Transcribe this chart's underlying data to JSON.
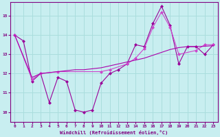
{
  "background_color": "#c8eef0",
  "grid_color": "#aadddd",
  "line_color_1": "#990099",
  "line_color_2": "#cc44cc",
  "line_color_3": "#aa00aa",
  "xlabel": "Windchill (Refroidissement éolien,°C)",
  "xlabel_color": "#800080",
  "tick_color": "#800080",
  "xlim": [
    -0.5,
    23.5
  ],
  "ylim": [
    9.5,
    15.7
  ],
  "yticks": [
    10,
    11,
    12,
    13,
    14,
    15
  ],
  "xticks": [
    0,
    1,
    2,
    3,
    4,
    5,
    6,
    7,
    8,
    9,
    10,
    11,
    12,
    13,
    14,
    15,
    16,
    17,
    18,
    19,
    20,
    21,
    22,
    23
  ],
  "line1_x": [
    0,
    1,
    2,
    3,
    4,
    5,
    6,
    7,
    8,
    9,
    10,
    11,
    12,
    13,
    14,
    15,
    16,
    17,
    18,
    19,
    20,
    21,
    22,
    23
  ],
  "line1_y": [
    14.0,
    13.7,
    11.6,
    12.0,
    10.5,
    11.8,
    11.6,
    10.1,
    10.0,
    10.1,
    11.5,
    12.0,
    12.2,
    12.5,
    13.5,
    13.4,
    14.6,
    15.5,
    14.5,
    12.5,
    13.4,
    13.4,
    13.0,
    13.5
  ],
  "line2_x": [
    0,
    2,
    3,
    5,
    10,
    11,
    13,
    14,
    15,
    16,
    17,
    18,
    19,
    21,
    22,
    23
  ],
  "line2_y": [
    14.0,
    11.7,
    12.0,
    12.1,
    12.1,
    12.2,
    12.5,
    12.8,
    13.3,
    14.4,
    15.2,
    14.4,
    13.0,
    13.2,
    13.5,
    13.5
  ],
  "line3_x": [
    0,
    2,
    3,
    4,
    5,
    6,
    7,
    8,
    9,
    10,
    11,
    12,
    13,
    14,
    15,
    16,
    17,
    18,
    19,
    20,
    21,
    22,
    23
  ],
  "line3_y": [
    14.0,
    11.8,
    12.0,
    12.05,
    12.1,
    12.15,
    12.2,
    12.2,
    12.25,
    12.3,
    12.4,
    12.5,
    12.6,
    12.7,
    12.8,
    12.95,
    13.1,
    13.25,
    13.35,
    13.4,
    13.4,
    13.42,
    13.45
  ]
}
